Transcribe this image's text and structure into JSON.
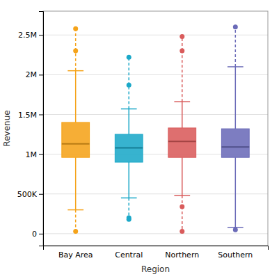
{
  "chart_data": {
    "type": "box",
    "xlabel": "Region",
    "ylabel": "Revenue",
    "categories": [
      "Bay Area",
      "Central",
      "Northern",
      "Southern"
    ],
    "colors": [
      "#F5A31A",
      "#1BA8C8",
      "#D95B5B",
      "#6B6BB8"
    ],
    "whislo": [
      300000,
      450000,
      480000,
      80000
    ],
    "q1": [
      960000,
      900000,
      960000,
      960000
    ],
    "med": [
      1130000,
      1080000,
      1160000,
      1090000
    ],
    "q3": [
      1400000,
      1250000,
      1330000,
      1320000
    ],
    "whishi": [
      2050000,
      1570000,
      1660000,
      2100000
    ],
    "fliers_high": [
      [
        2300000,
        2580000
      ],
      [
        1870000,
        2220000
      ],
      [
        2300000,
        2480000
      ],
      [
        2600000
      ]
    ],
    "fliers_low": [
      [
        30000
      ],
      [
        200000,
        180000
      ],
      [
        340000,
        30000
      ],
      [
        50000
      ]
    ],
    "ylim": [
      -150000,
      2800000
    ],
    "yticks": [
      0,
      {
        "value": 500000,
        "label": "500K"
      },
      {
        "value": 1000000,
        "label": "1M"
      },
      {
        "value": 1500000,
        "label": "1.5M"
      },
      {
        "value": 2000000,
        "label": "2M"
      },
      {
        "value": 2500000,
        "label": "2.5M"
      }
    ],
    "grid": true
  }
}
